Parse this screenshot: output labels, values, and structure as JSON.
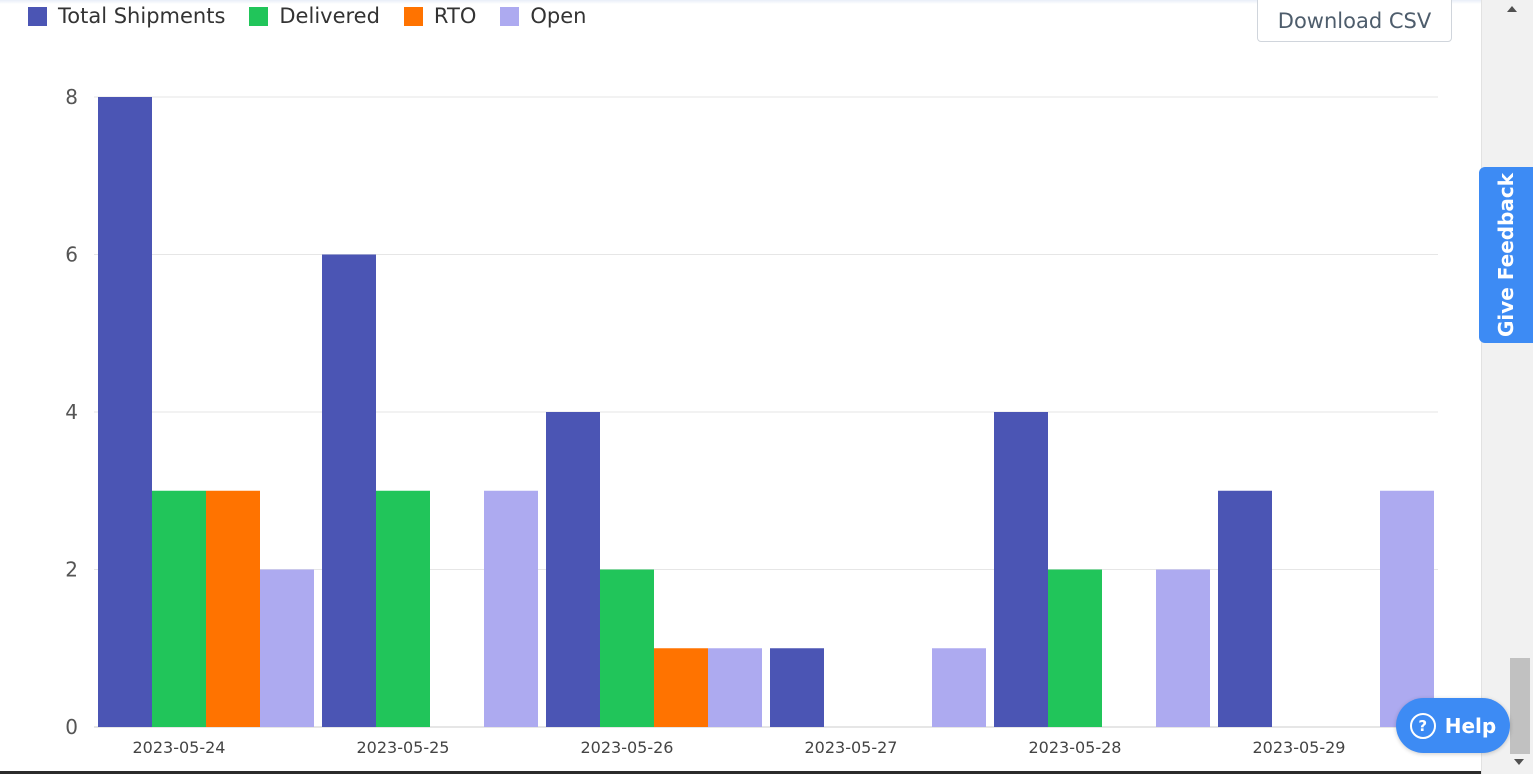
{
  "toolbar": {
    "download_label": "Download CSV"
  },
  "feedback": {
    "label": "Give Feedback"
  },
  "help": {
    "label": "Help",
    "icon_glyph": "?",
    "icon": "question-circle-icon"
  },
  "colors": {
    "total": "#4b55b4",
    "delivered": "#21c55a",
    "rto": "#ff7300",
    "open": "#adaaf0",
    "accent": "#3d8bf4"
  },
  "chart_data": {
    "type": "bar",
    "categories": [
      "2023-05-24",
      "2023-05-25",
      "2023-05-26",
      "2023-05-27",
      "2023-05-28",
      "2023-05-29"
    ],
    "series": [
      {
        "name": "Total Shipments",
        "color": "#4b55b4",
        "values": [
          8,
          6,
          4,
          1,
          4,
          3
        ]
      },
      {
        "name": "Delivered",
        "color": "#21c55a",
        "values": [
          3,
          3,
          2,
          0,
          2,
          0
        ]
      },
      {
        "name": "RTO",
        "color": "#ff7300",
        "values": [
          3,
          0,
          1,
          0,
          0,
          0
        ]
      },
      {
        "name": "Open",
        "color": "#adaaf0",
        "values": [
          2,
          3,
          1,
          1,
          2,
          3
        ]
      }
    ],
    "yticks": [
      "0",
      "2",
      "4",
      "6",
      "8"
    ],
    "ylim": [
      0,
      8
    ],
    "grid": true,
    "legend_position": "top-left"
  }
}
